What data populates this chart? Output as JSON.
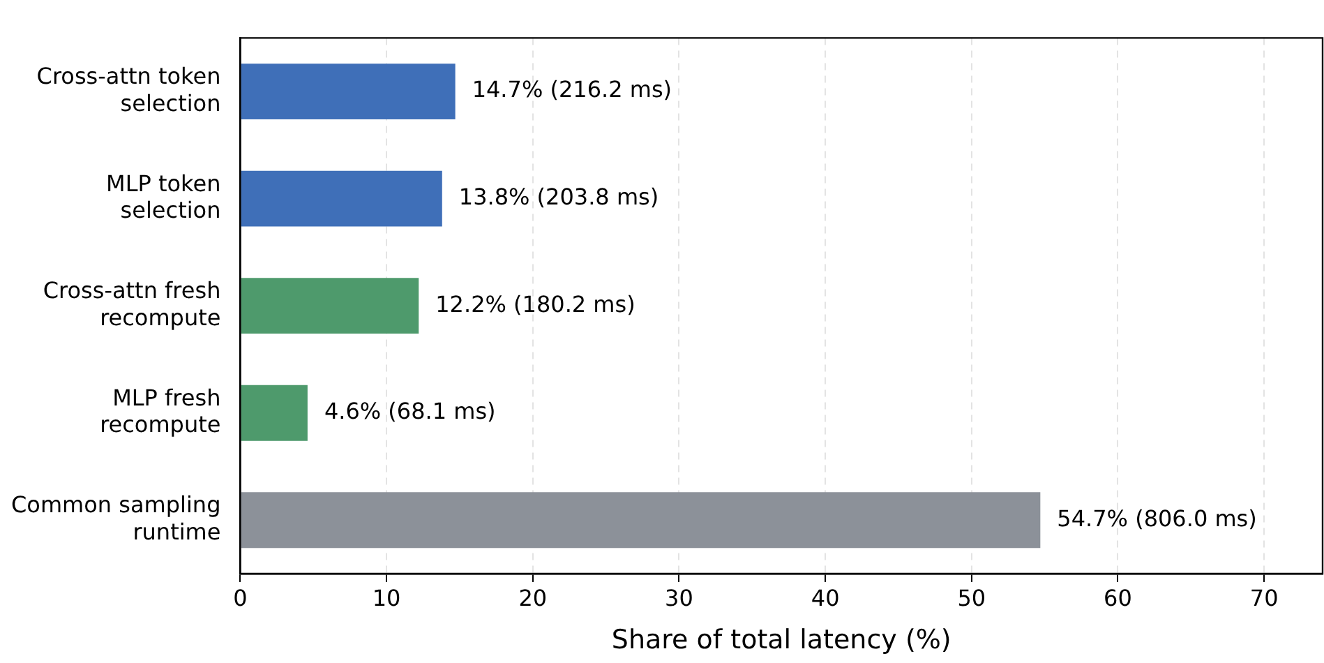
{
  "chart_data": {
    "type": "bar",
    "orientation": "horizontal",
    "xlabel": "Share of total latency (%)",
    "categories": [
      "Cross-attn token selection",
      "MLP token selection",
      "Cross-attn fresh recompute",
      "MLP fresh recompute",
      "Common sampling runtime"
    ],
    "values": [
      14.7,
      13.8,
      12.2,
      4.6,
      54.7
    ],
    "colors": [
      "#3f6fb8",
      "#3f6fb8",
      "#4e9a6c",
      "#4e9a6c",
      "#8c9199"
    ],
    "value_labels": [
      "14.7% (216.2 ms)",
      "13.8% (203.8 ms)",
      "12.2% (180.2 ms)",
      "4.6% (68.1 ms)",
      "54.7% (806.0 ms)"
    ],
    "xlim": [
      0,
      74
    ],
    "xticks": [
      0,
      10,
      20,
      30,
      40,
      50,
      60,
      70
    ],
    "grid": "x",
    "legend": false
  }
}
